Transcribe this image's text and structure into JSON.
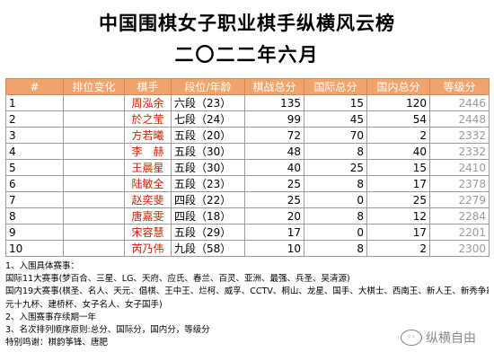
{
  "title": "中国围棋女子职业棋手纵横风云榜",
  "subtitle": "二〇二二年六月",
  "table": {
    "headers": [
      "#",
      "排位变化",
      "棋手",
      "段位/年龄",
      "棋战总分",
      "国际总分",
      "国内总分",
      "等级分"
    ],
    "rows": [
      {
        "rank": "1",
        "change": "",
        "name": "周泓余",
        "dan": "六段（23）",
        "total": "135",
        "intl": "15",
        "dom": "120",
        "rating": "2446"
      },
      {
        "rank": "2",
        "change": "",
        "name": "於之莹",
        "dan": "七段（24）",
        "total": "99",
        "intl": "45",
        "dom": "54",
        "rating": "2448"
      },
      {
        "rank": "3",
        "change": "",
        "name": "方若曦",
        "dan": "五段（20）",
        "total": "72",
        "intl": "70",
        "dom": "2",
        "rating": "2332"
      },
      {
        "rank": "4",
        "change": "",
        "name": "李　赫",
        "dan": "五段（30）",
        "total": "48",
        "intl": "8",
        "dom": "40",
        "rating": "2332"
      },
      {
        "rank": "5",
        "change": "",
        "name": "王晨星",
        "dan": "五段（30）",
        "total": "40",
        "intl": "25",
        "dom": "15",
        "rating": "2410"
      },
      {
        "rank": "6",
        "change": "",
        "name": "陆敏全",
        "dan": "五段（23）",
        "total": "25",
        "intl": "8",
        "dom": "17",
        "rating": "2378"
      },
      {
        "rank": "7",
        "change": "",
        "name": "赵奕斐",
        "dan": "四段（22）",
        "total": "25",
        "intl": "0",
        "dom": "25",
        "rating": "2279"
      },
      {
        "rank": "8",
        "change": "",
        "name": "唐嘉雯",
        "dan": "四段（18）",
        "total": "20",
        "intl": "8",
        "dom": "12",
        "rating": "2284"
      },
      {
        "rank": "9",
        "change": "",
        "name": "宋容慧",
        "dan": "五段（29）",
        "total": "17",
        "intl": "0",
        "dom": "17",
        "rating": "2201"
      },
      {
        "rank": "10",
        "change": "",
        "name": "芮乃伟",
        "dan": "九段（58）",
        "total": "10",
        "intl": "8",
        "dom": "2",
        "rating": "2300"
      }
    ]
  },
  "notes": [
    "1、入围具体赛事：",
    "国际11大赛事(梦百合、三星、LG、天府、应氏、春兰、百灵、亚洲、最强、兵圣、吴清源)",
    "国内19大赛事(棋圣、名人、天元、倡棋、王中王、烂柯、威孚、CCTV、桐山、龙星、国手、大棋士、西南王、新人王、新秀争霸、",
    "元十九杯、建桥杯、女子名人、女子国手)",
    "2、入围赛事存续期一年",
    "3、名次排列顺序原则:总分、国际分，国内分，等级分",
    "特别鸣谢：棋韵筝锋、唐肥"
  ],
  "watermark": "纵横自由",
  "colors": {
    "header_bg": "#f0a36a",
    "name_text": "#cc2200",
    "rating_text": "#9a9a9a"
  }
}
